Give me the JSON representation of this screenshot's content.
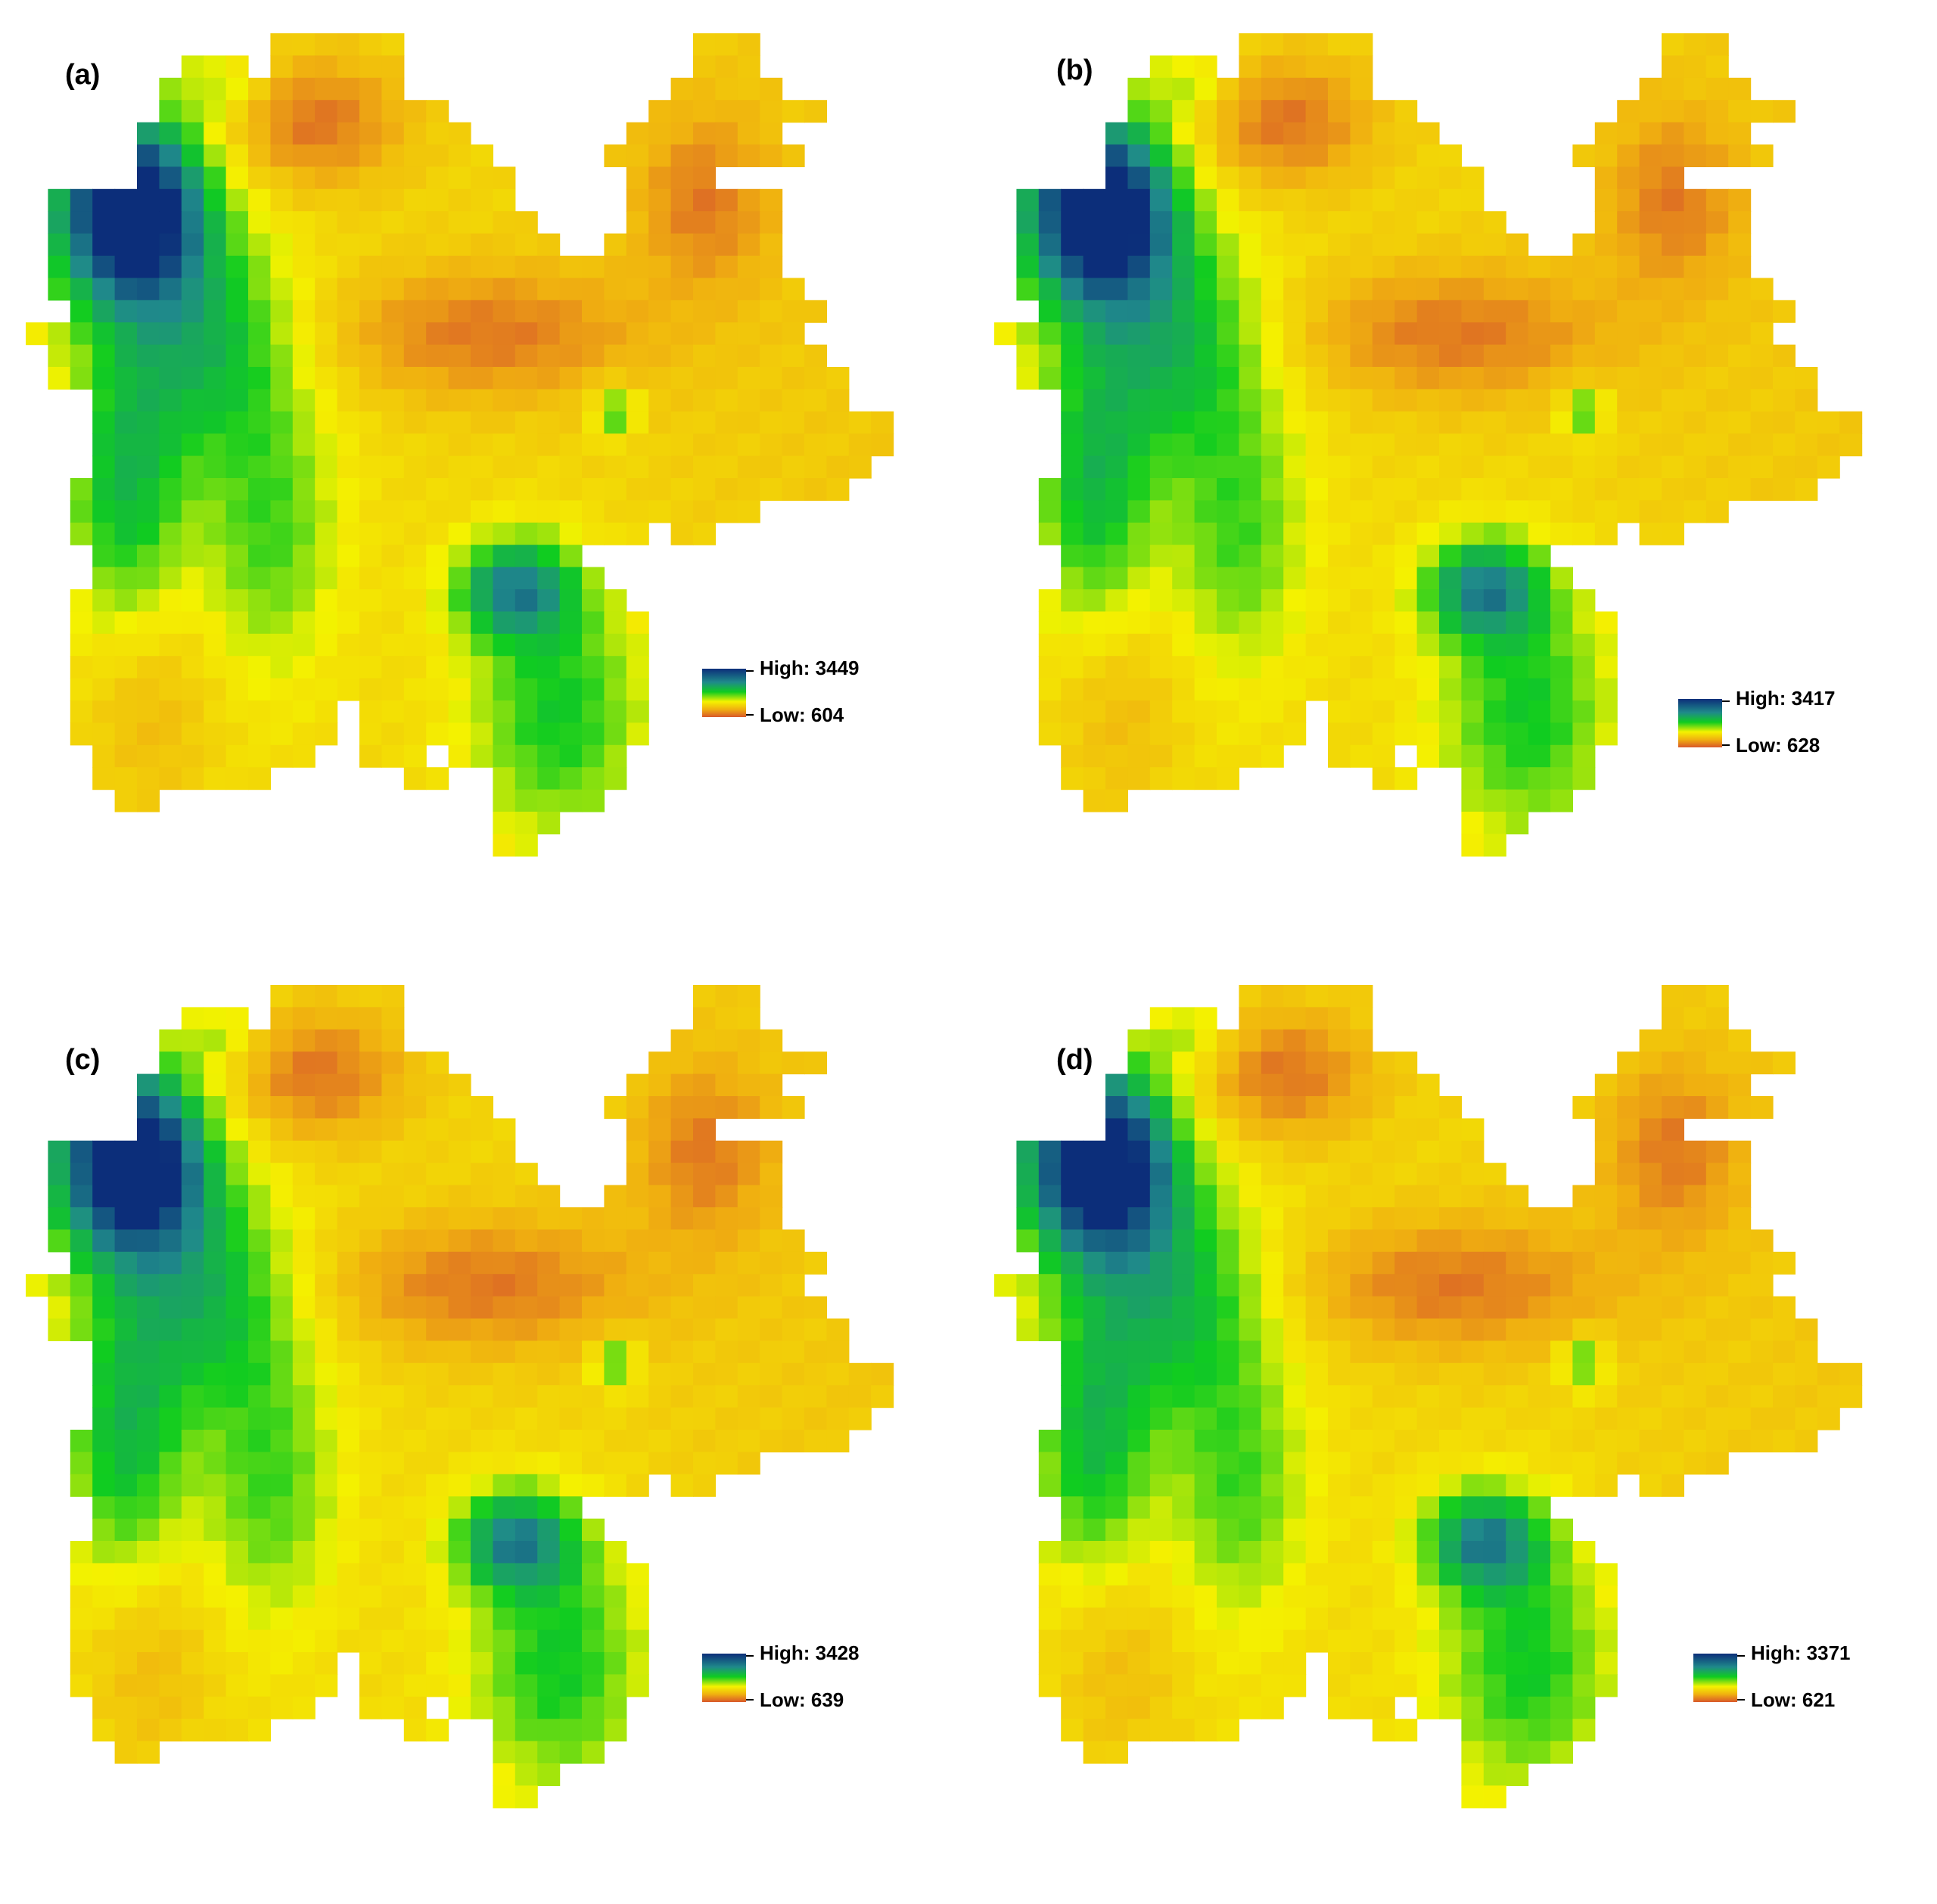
{
  "panels": [
    {
      "label": "(a)",
      "legend": {
        "high_label": "High: 3449",
        "low_label": "Low: 604"
      }
    },
    {
      "label": "(b)",
      "legend": {
        "high_label": "High: 3417",
        "low_label": "Low: 628"
      }
    },
    {
      "label": "(c)",
      "legend": {
        "high_label": "High: 3428",
        "low_label": "Low: 639"
      }
    },
    {
      "label": "(d)",
      "legend": {
        "high_label": "High: 3371",
        "low_label": "Low: 621"
      }
    }
  ],
  "color_ramp": {
    "high": "#0c2e7a",
    "mid_high": "#1f8a8a",
    "mid": "#10cc20",
    "mid_low": "#f4f200",
    "low_mid": "#f0b010",
    "low": "#d8582a"
  }
}
